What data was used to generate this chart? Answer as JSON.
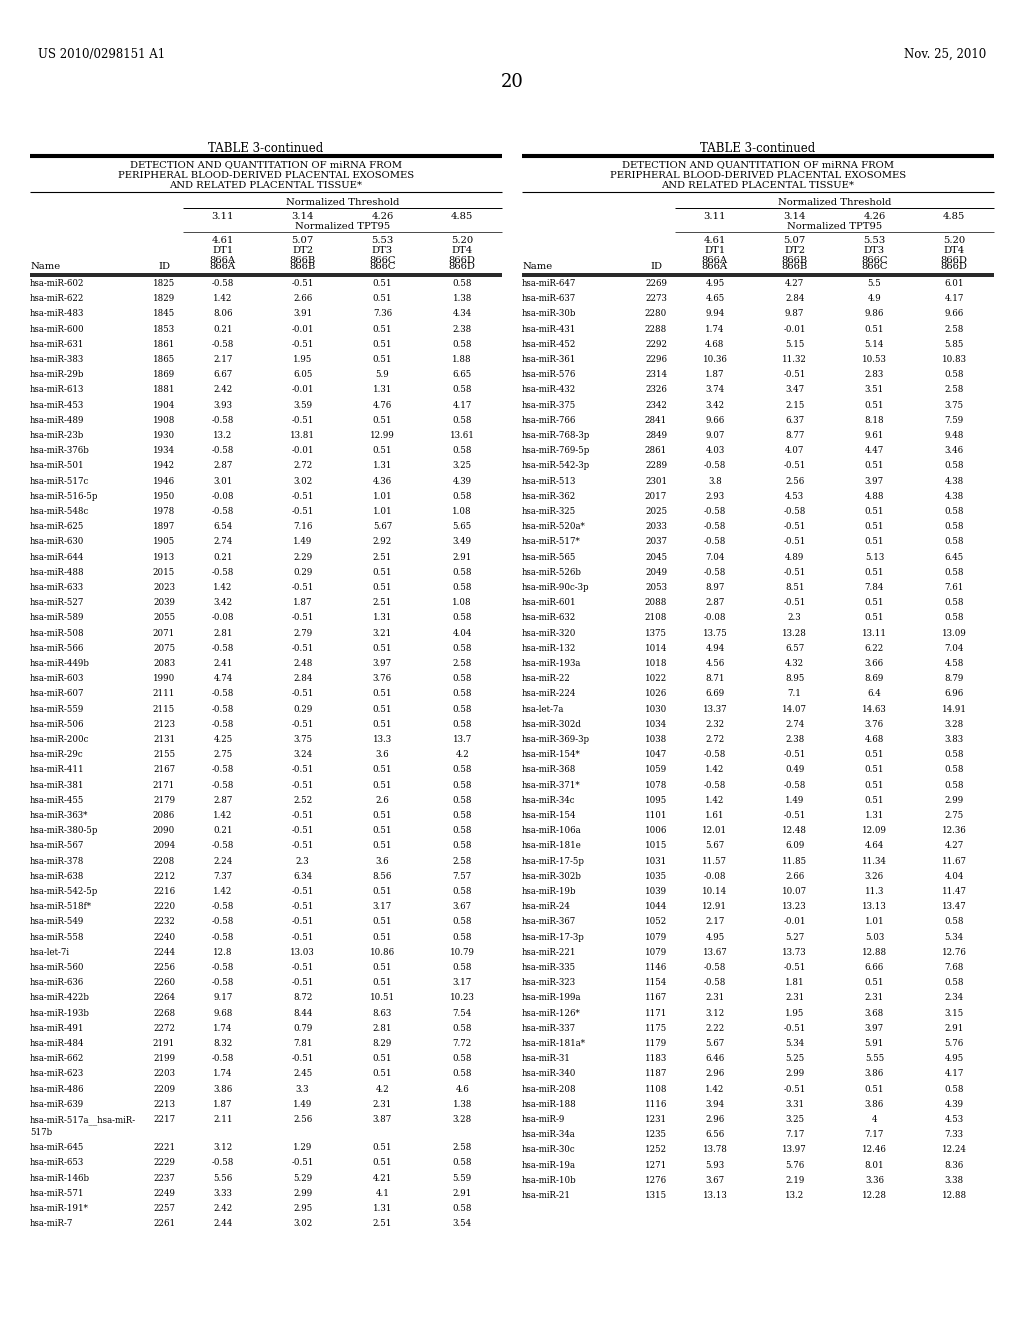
{
  "page_header_left": "US 2010/0298151 A1",
  "page_header_right": "Nov. 25, 2010",
  "page_number": "20",
  "table_title": "TABLE 3-continued",
  "table_subtitle_lines": [
    "DETECTION AND QUANTITATION OF miRNA FROM",
    "PERIPHERAL BLOOD-DERIVED PLACENTAL EXOSOMES",
    "AND RELATED PLACENTAL TISSUE*"
  ],
  "norm_threshold_label": "Normalized Threshold",
  "norm_tpt95_label": "Normalized TPT95",
  "col_headers_top": [
    "3.11",
    "3.14",
    "4.26",
    "4.85"
  ],
  "col_headers_sub": [
    [
      "4.61",
      "DT1",
      "866A"
    ],
    [
      "5.07",
      "DT2",
      "866B"
    ],
    [
      "5.53",
      "DT3",
      "866C"
    ],
    [
      "5.20",
      "DT4",
      "866D"
    ]
  ],
  "left_data": [
    [
      "hsa-miR-602",
      "1825",
      "-0.58",
      "-0.51",
      "0.51",
      "0.58"
    ],
    [
      "hsa-miR-622",
      "1829",
      "1.42",
      "2.66",
      "0.51",
      "1.38"
    ],
    [
      "hsa-miR-483",
      "1845",
      "8.06",
      "3.91",
      "7.36",
      "4.34"
    ],
    [
      "hsa-miR-600",
      "1853",
      "0.21",
      "-0.01",
      "0.51",
      "2.38"
    ],
    [
      "hsa-miR-631",
      "1861",
      "-0.58",
      "-0.51",
      "0.51",
      "0.58"
    ],
    [
      "hsa-miR-383",
      "1865",
      "2.17",
      "1.95",
      "0.51",
      "1.88"
    ],
    [
      "hsa-miR-29b",
      "1869",
      "6.67",
      "6.05",
      "5.9",
      "6.65"
    ],
    [
      "hsa-miR-613",
      "1881",
      "2.42",
      "-0.01",
      "1.31",
      "0.58"
    ],
    [
      "hsa-miR-453",
      "1904",
      "3.93",
      "3.59",
      "4.76",
      "4.17"
    ],
    [
      "hsa-miR-489",
      "1908",
      "-0.58",
      "-0.51",
      "0.51",
      "0.58"
    ],
    [
      "hsa-miR-23b",
      "1930",
      "13.2",
      "13.81",
      "12.99",
      "13.61"
    ],
    [
      "hsa-miR-376b",
      "1934",
      "-0.58",
      "-0.01",
      "0.51",
      "0.58"
    ],
    [
      "hsa-miR-501",
      "1942",
      "2.87",
      "2.72",
      "1.31",
      "3.25"
    ],
    [
      "hsa-miR-517c",
      "1946",
      "3.01",
      "3.02",
      "4.36",
      "4.39"
    ],
    [
      "hsa-miR-516-5p",
      "1950",
      "-0.08",
      "-0.51",
      "1.01",
      "0.58"
    ],
    [
      "hsa-miR-548c",
      "1978",
      "-0.58",
      "-0.51",
      "1.01",
      "1.08"
    ],
    [
      "hsa-miR-625",
      "1897",
      "6.54",
      "7.16",
      "5.67",
      "5.65"
    ],
    [
      "hsa-miR-630",
      "1905",
      "2.74",
      "1.49",
      "2.92",
      "3.49"
    ],
    [
      "hsa-miR-644",
      "1913",
      "0.21",
      "2.29",
      "2.51",
      "2.91"
    ],
    [
      "hsa-miR-488",
      "2015",
      "-0.58",
      "0.29",
      "0.51",
      "0.58"
    ],
    [
      "hsa-miR-633",
      "2023",
      "1.42",
      "-0.51",
      "0.51",
      "0.58"
    ],
    [
      "hsa-miR-527",
      "2039",
      "3.42",
      "1.87",
      "2.51",
      "1.08"
    ],
    [
      "hsa-miR-589",
      "2055",
      "-0.08",
      "-0.51",
      "1.31",
      "0.58"
    ],
    [
      "hsa-miR-508",
      "2071",
      "2.81",
      "2.79",
      "3.21",
      "4.04"
    ],
    [
      "hsa-miR-566",
      "2075",
      "-0.58",
      "-0.51",
      "0.51",
      "0.58"
    ],
    [
      "hsa-miR-449b",
      "2083",
      "2.41",
      "2.48",
      "3.97",
      "2.58"
    ],
    [
      "hsa-miR-603",
      "1990",
      "4.74",
      "2.84",
      "3.76",
      "0.58"
    ],
    [
      "hsa-miR-607",
      "2111",
      "-0.58",
      "-0.51",
      "0.51",
      "0.58"
    ],
    [
      "hsa-miR-559",
      "2115",
      "-0.58",
      "0.29",
      "0.51",
      "0.58"
    ],
    [
      "hsa-miR-506",
      "2123",
      "-0.58",
      "-0.51",
      "0.51",
      "0.58"
    ],
    [
      "hsa-miR-200c",
      "2131",
      "4.25",
      "3.75",
      "13.3",
      "13.7"
    ],
    [
      "hsa-miR-29c",
      "2155",
      "2.75",
      "3.24",
      "3.6",
      "4.2"
    ],
    [
      "hsa-miR-411",
      "2167",
      "-0.58",
      "-0.51",
      "0.51",
      "0.58"
    ],
    [
      "hsa-miR-381",
      "2171",
      "-0.58",
      "-0.51",
      "0.51",
      "0.58"
    ],
    [
      "hsa-miR-455",
      "2179",
      "2.87",
      "2.52",
      "2.6",
      "0.58"
    ],
    [
      "hsa-miR-363*",
      "2086",
      "1.42",
      "-0.51",
      "0.51",
      "0.58"
    ],
    [
      "hsa-miR-380-5p",
      "2090",
      "0.21",
      "-0.51",
      "0.51",
      "0.58"
    ],
    [
      "hsa-miR-567",
      "2094",
      "-0.58",
      "-0.51",
      "0.51",
      "0.58"
    ],
    [
      "hsa-miR-378",
      "2208",
      "2.24",
      "2.3",
      "3.6",
      "2.58"
    ],
    [
      "hsa-miR-638",
      "2212",
      "7.37",
      "6.34",
      "8.56",
      "7.57"
    ],
    [
      "hsa-miR-542-5p",
      "2216",
      "1.42",
      "-0.51",
      "0.51",
      "0.58"
    ],
    [
      "hsa-miR-518f*",
      "2220",
      "-0.58",
      "-0.51",
      "3.17",
      "3.67"
    ],
    [
      "hsa-miR-549",
      "2232",
      "-0.58",
      "-0.51",
      "0.51",
      "0.58"
    ],
    [
      "hsa-miR-558",
      "2240",
      "-0.58",
      "-0.51",
      "0.51",
      "0.58"
    ],
    [
      "hsa-let-7i",
      "2244",
      "12.8",
      "13.03",
      "10.86",
      "10.79"
    ],
    [
      "hsa-miR-560",
      "2256",
      "-0.58",
      "-0.51",
      "0.51",
      "0.58"
    ],
    [
      "hsa-miR-636",
      "2260",
      "-0.58",
      "-0.51",
      "0.51",
      "3.17"
    ],
    [
      "hsa-miR-422b",
      "2264",
      "9.17",
      "8.72",
      "10.51",
      "10.23"
    ],
    [
      "hsa-miR-193b",
      "2268",
      "9.68",
      "8.44",
      "8.63",
      "7.54"
    ],
    [
      "hsa-miR-491",
      "2272",
      "1.74",
      "0.79",
      "2.81",
      "0.58"
    ],
    [
      "hsa-miR-484",
      "2191",
      "8.32",
      "7.81",
      "8.29",
      "7.72"
    ],
    [
      "hsa-miR-662",
      "2199",
      "-0.58",
      "-0.51",
      "0.51",
      "0.58"
    ],
    [
      "hsa-miR-623",
      "2203",
      "1.74",
      "2.45",
      "0.51",
      "0.58"
    ],
    [
      "hsa-miR-486",
      "2209",
      "3.86",
      "3.3",
      "4.2",
      "4.6"
    ],
    [
      "hsa-miR-639",
      "2213",
      "1.87",
      "1.49",
      "2.31",
      "1.38"
    ],
    [
      "hsa-miR-517a__hsa-miR-\n517b",
      "2217",
      "2.11",
      "2.56",
      "3.87",
      "3.28"
    ],
    [
      "hsa-miR-645",
      "2221",
      "3.12",
      "1.29",
      "0.51",
      "2.58"
    ],
    [
      "hsa-miR-653",
      "2229",
      "-0.58",
      "-0.51",
      "0.51",
      "0.58"
    ],
    [
      "hsa-miR-146b",
      "2237",
      "5.56",
      "5.29",
      "4.21",
      "5.59"
    ],
    [
      "hsa-miR-571",
      "2249",
      "3.33",
      "2.99",
      "4.1",
      "2.91"
    ],
    [
      "hsa-miR-191*",
      "2257",
      "2.42",
      "2.95",
      "1.31",
      "0.58"
    ],
    [
      "hsa-miR-7",
      "2261",
      "2.44",
      "3.02",
      "2.51",
      "3.54"
    ]
  ],
  "right_data": [
    [
      "hsa-miR-647",
      "2269",
      "4.95",
      "4.27",
      "5.5",
      "6.01"
    ],
    [
      "hsa-miR-637",
      "2273",
      "4.65",
      "2.84",
      "4.9",
      "4.17"
    ],
    [
      "hsa-miR-30b",
      "2280",
      "9.94",
      "9.87",
      "9.86",
      "9.66"
    ],
    [
      "hsa-miR-431",
      "2288",
      "1.74",
      "-0.01",
      "0.51",
      "2.58"
    ],
    [
      "hsa-miR-452",
      "2292",
      "4.68",
      "5.15",
      "5.14",
      "5.85"
    ],
    [
      "hsa-miR-361",
      "2296",
      "10.36",
      "11.32",
      "10.53",
      "10.83"
    ],
    [
      "hsa-miR-576",
      "2314",
      "1.87",
      "-0.51",
      "2.83",
      "0.58"
    ],
    [
      "hsa-miR-432",
      "2326",
      "3.74",
      "3.47",
      "3.51",
      "2.58"
    ],
    [
      "hsa-miR-375",
      "2342",
      "3.42",
      "2.15",
      "0.51",
      "3.75"
    ],
    [
      "hsa-miR-766",
      "2841",
      "9.66",
      "6.37",
      "8.18",
      "7.59"
    ],
    [
      "hsa-miR-768-3p",
      "2849",
      "9.07",
      "8.77",
      "9.61",
      "9.48"
    ],
    [
      "hsa-miR-769-5p",
      "2861",
      "4.03",
      "4.07",
      "4.47",
      "3.46"
    ],
    [
      "hsa-miR-542-3p",
      "2289",
      "-0.58",
      "-0.51",
      "0.51",
      "0.58"
    ],
    [
      "hsa-miR-513",
      "2301",
      "3.8",
      "2.56",
      "3.97",
      "4.38"
    ],
    [
      "hsa-miR-362",
      "2017",
      "2.93",
      "4.53",
      "4.88",
      "4.38"
    ],
    [
      "hsa-miR-325",
      "2025",
      "-0.58",
      "-0.58",
      "0.51",
      "0.58"
    ],
    [
      "hsa-miR-520a*",
      "2033",
      "-0.58",
      "-0.51",
      "0.51",
      "0.58"
    ],
    [
      "hsa-miR-517*",
      "2037",
      "-0.58",
      "-0.51",
      "0.51",
      "0.58"
    ],
    [
      "hsa-miR-565",
      "2045",
      "7.04",
      "4.89",
      "5.13",
      "6.45"
    ],
    [
      "hsa-miR-526b",
      "2049",
      "-0.58",
      "-0.51",
      "0.51",
      "0.58"
    ],
    [
      "hsa-miR-90c-3p",
      "2053",
      "8.97",
      "8.51",
      "7.84",
      "7.61"
    ],
    [
      "hsa-miR-601",
      "2088",
      "2.87",
      "-0.51",
      "0.51",
      "0.58"
    ],
    [
      "hsa-miR-632",
      "2108",
      "-0.08",
      "2.3",
      "0.51",
      "0.58"
    ],
    [
      "hsa-miR-320",
      "1375",
      "13.75",
      "13.28",
      "13.11",
      "13.09"
    ],
    [
      "hsa-miR-132",
      "1014",
      "4.94",
      "6.57",
      "6.22",
      "7.04"
    ],
    [
      "hsa-miR-193a",
      "1018",
      "4.56",
      "4.32",
      "3.66",
      "4.58"
    ],
    [
      "hsa-miR-22",
      "1022",
      "8.71",
      "8.95",
      "8.69",
      "8.79"
    ],
    [
      "hsa-miR-224",
      "1026",
      "6.69",
      "7.1",
      "6.4",
      "6.96"
    ],
    [
      "hsa-let-7a",
      "1030",
      "13.37",
      "14.07",
      "14.63",
      "14.91"
    ],
    [
      "hsa-miR-302d",
      "1034",
      "2.32",
      "2.74",
      "3.76",
      "3.28"
    ],
    [
      "hsa-miR-369-3p",
      "1038",
      "2.72",
      "2.38",
      "4.68",
      "3.83"
    ],
    [
      "hsa-miR-154*",
      "1047",
      "-0.58",
      "-0.51",
      "0.51",
      "0.58"
    ],
    [
      "hsa-miR-368",
      "1059",
      "1.42",
      "0.49",
      "0.51",
      "0.58"
    ],
    [
      "hsa-miR-371*",
      "1078",
      "-0.58",
      "-0.58",
      "0.51",
      "0.58"
    ],
    [
      "hsa-miR-34c",
      "1095",
      "1.42",
      "1.49",
      "0.51",
      "2.99"
    ],
    [
      "hsa-miR-154",
      "1101",
      "1.61",
      "-0.51",
      "1.31",
      "2.75"
    ],
    [
      "hsa-miR-106a",
      "1006",
      "12.01",
      "12.48",
      "12.09",
      "12.36"
    ],
    [
      "hsa-miR-181e",
      "1015",
      "5.67",
      "6.09",
      "4.64",
      "4.27"
    ],
    [
      "hsa-miR-17-5p",
      "1031",
      "11.57",
      "11.85",
      "11.34",
      "11.67"
    ],
    [
      "hsa-miR-302b",
      "1035",
      "-0.08",
      "2.66",
      "3.26",
      "4.04"
    ],
    [
      "hsa-miR-19b",
      "1039",
      "10.14",
      "10.07",
      "11.3",
      "11.47"
    ],
    [
      "hsa-miR-24",
      "1044",
      "12.91",
      "13.23",
      "13.13",
      "13.47"
    ],
    [
      "hsa-miR-367",
      "1052",
      "2.17",
      "-0.01",
      "1.01",
      "0.58"
    ],
    [
      "hsa-miR-17-3p",
      "1079",
      "4.95",
      "5.27",
      "5.03",
      "5.34"
    ],
    [
      "hsa-miR-221",
      "1079",
      "13.67",
      "13.73",
      "12.88",
      "12.76"
    ],
    [
      "hsa-miR-335",
      "1146",
      "-0.58",
      "-0.51",
      "6.66",
      "7.68"
    ],
    [
      "hsa-miR-323",
      "1154",
      "-0.58",
      "1.81",
      "0.51",
      "0.58"
    ],
    [
      "hsa-miR-199a",
      "1167",
      "2.31",
      "2.31",
      "2.31",
      "2.34"
    ],
    [
      "hsa-miR-126*",
      "1171",
      "3.12",
      "1.95",
      "3.68",
      "3.15"
    ],
    [
      "hsa-miR-337",
      "1175",
      "2.22",
      "-0.51",
      "3.97",
      "2.91"
    ],
    [
      "hsa-miR-181a*",
      "1179",
      "5.67",
      "5.34",
      "5.91",
      "5.76"
    ],
    [
      "hsa-miR-31",
      "1183",
      "6.46",
      "5.25",
      "5.55",
      "4.95"
    ],
    [
      "hsa-miR-340",
      "1187",
      "2.96",
      "2.99",
      "3.86",
      "4.17"
    ],
    [
      "hsa-miR-208",
      "1108",
      "1.42",
      "-0.51",
      "0.51",
      "0.58"
    ],
    [
      "hsa-miR-188",
      "1116",
      "3.94",
      "3.31",
      "3.86",
      "4.39"
    ],
    [
      "hsa-miR-9",
      "1231",
      "2.96",
      "3.25",
      "4",
      "4.53"
    ],
    [
      "hsa-miR-34a",
      "1235",
      "6.56",
      "7.17",
      "7.17",
      "7.33"
    ],
    [
      "hsa-miR-30c",
      "1252",
      "13.78",
      "13.97",
      "12.46",
      "12.24"
    ],
    [
      "hsa-miR-19a",
      "1271",
      "5.93",
      "5.76",
      "8.01",
      "8.36"
    ],
    [
      "hsa-miR-10b",
      "1276",
      "3.67",
      "2.19",
      "3.36",
      "3.38"
    ],
    [
      "hsa-miR-21",
      "1315",
      "13.13",
      "13.2",
      "12.28",
      "12.88"
    ]
  ]
}
